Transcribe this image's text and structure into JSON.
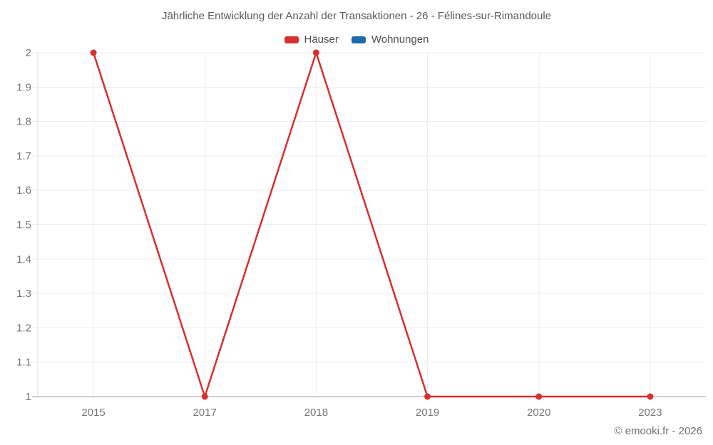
{
  "footer": {
    "text": "© emooki.fr - 2026"
  },
  "legend": {
    "items": [
      {
        "label": "Häuser",
        "color": "#d6302e"
      },
      {
        "label": "Wohnungen",
        "color": "#1b6ca8"
      }
    ]
  },
  "colors": {
    "grid_line": "#ededed",
    "plot_border": "#e0e0e0",
    "axis_line": "#9a9a9a",
    "tick_label": "#757575",
    "title_text": "#58595b",
    "legend_text": "#4d4f52",
    "footer_text": "#707070",
    "hauser_red": "#d6302e",
    "wohnungen_blue": "#1b6ca8"
  },
  "chart_data": {
    "type": "line",
    "title": "Jährliche Entwicklung der Anzahl der Transaktionen - 26 - Félines-sur-Rimandoule",
    "categories": [
      "2015",
      "2017",
      "2018",
      "2019",
      "2020",
      "2023"
    ],
    "series": [
      {
        "name": "Häuser",
        "color": "#d6302e",
        "values": [
          2,
          1,
          2,
          1,
          1,
          1
        ]
      },
      {
        "name": "Wohnungen",
        "color": "#1b6ca8",
        "values": []
      }
    ],
    "xlabel": "",
    "ylabel": "",
    "ylim": [
      1,
      2
    ],
    "y_ticks": [
      1,
      1.1,
      1.2,
      1.3,
      1.4,
      1.5,
      1.6,
      1.7,
      1.8,
      1.9,
      2
    ],
    "grid": true,
    "legend_position": "top",
    "marker": "circle"
  }
}
